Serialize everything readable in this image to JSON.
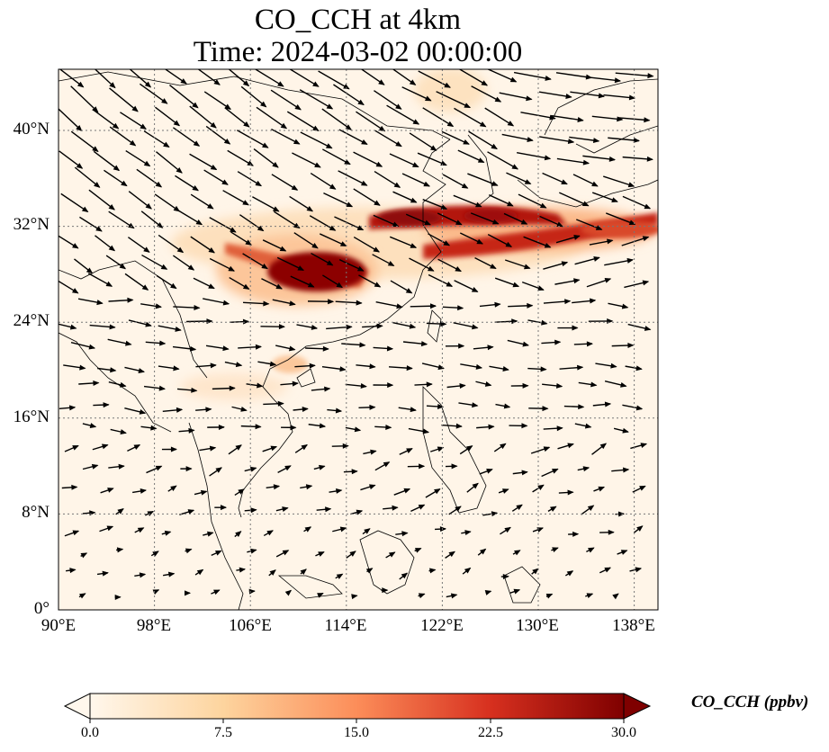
{
  "title": {
    "line1": "CO_CCH at 4km",
    "line2": "Time: 2024-03-02 00:00:00"
  },
  "map": {
    "lon_range": [
      90,
      140
    ],
    "lat_range": [
      0,
      45
    ],
    "gridlines": "dotted",
    "lat_ticks": [
      "0°",
      "8°N",
      "16°N",
      "24°N",
      "32°N",
      "40°N"
    ],
    "lon_ticks": [
      "90°E",
      "98°E",
      "106°E",
      "114°E",
      "122°E",
      "130°E",
      "138°E"
    ],
    "overlay": "wind vectors"
  },
  "colorbar": {
    "title": "CO_CCH (ppbv)",
    "ticks": [
      "0.0",
      "7.5",
      "15.0",
      "22.5",
      "30.0"
    ],
    "min": 0,
    "max": 30,
    "colormap": [
      "#fff7ec",
      "#fdd49e",
      "#fc8d59",
      "#d7301f",
      "#7f0000"
    ],
    "extend": "both"
  }
}
